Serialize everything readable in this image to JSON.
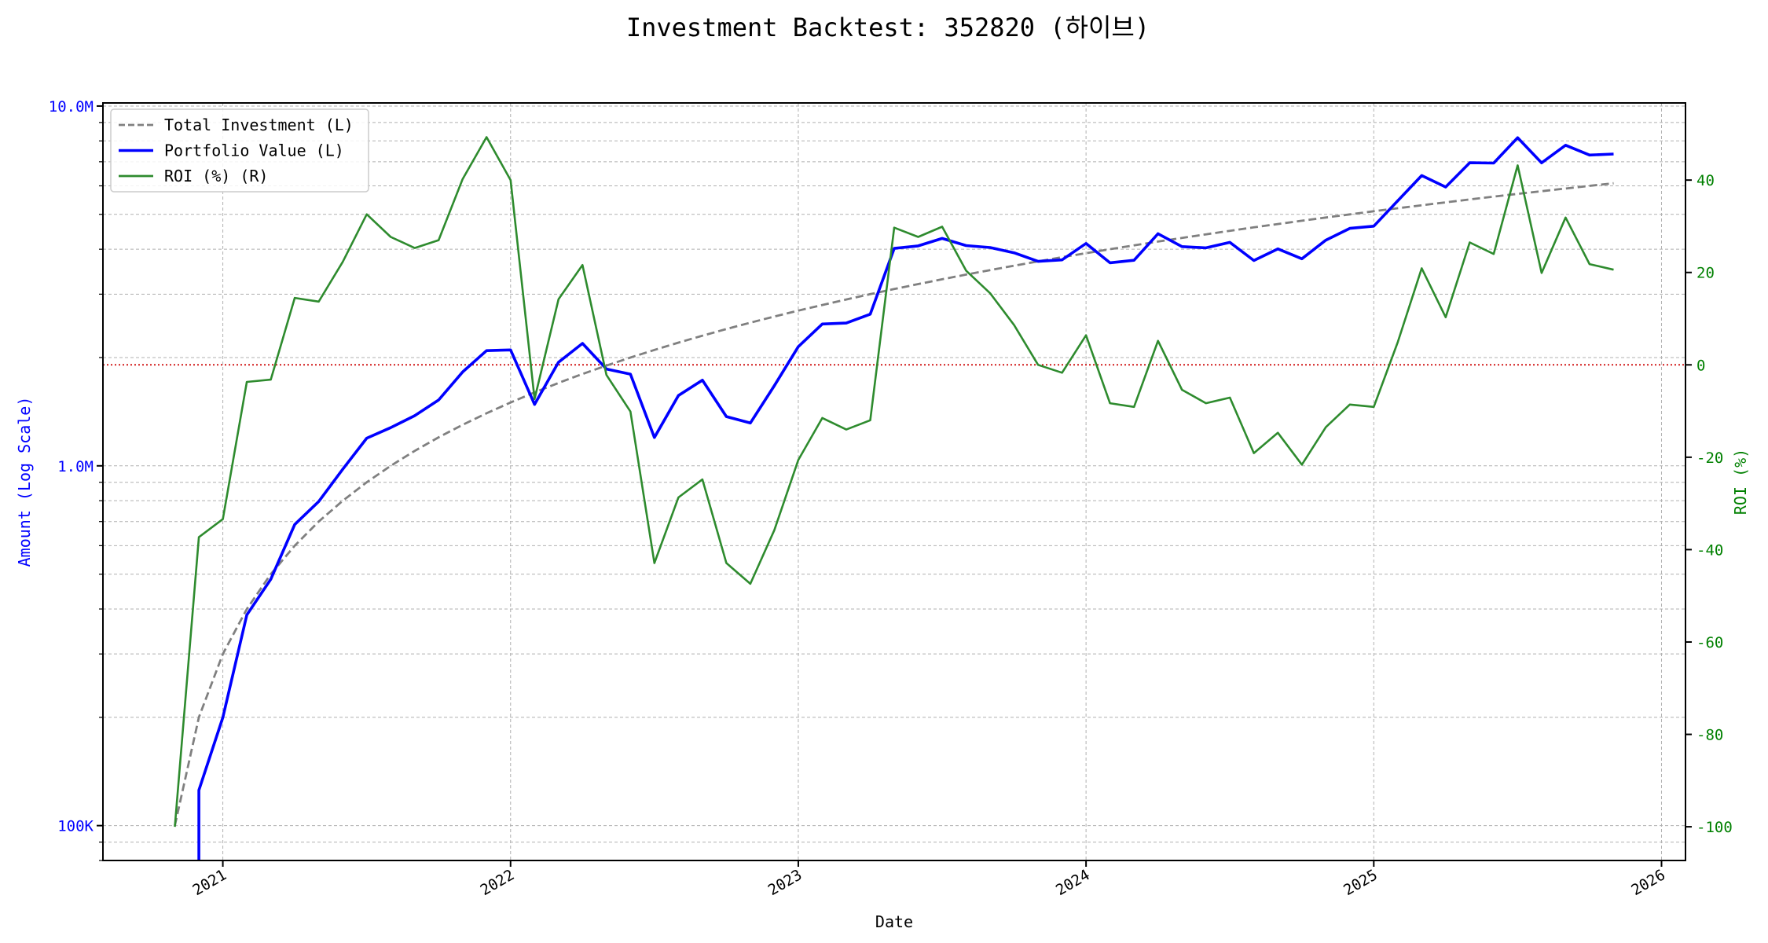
{
  "chart_data": {
    "type": "line",
    "title": "Investment Backtest: 352820 (하이브)",
    "xlabel": "Date",
    "ylabel_left": "Amount (Log Scale)",
    "ylabel_right": "ROI (%)",
    "left_scale": "log",
    "left_ylim": [
      80000,
      10200000
    ],
    "left_ticks": [
      {
        "value": 100000,
        "label": "100K"
      },
      {
        "value": 1000000,
        "label": "1.0M"
      },
      {
        "value": 10000000,
        "label": "10.0M"
      }
    ],
    "right_ylim": [
      -107.3,
      56.7
    ],
    "right_ticks": [
      -100,
      -80,
      -60,
      -40,
      -20,
      0,
      20,
      40
    ],
    "xlim": [
      "2020-08",
      "2026-02"
    ],
    "x_ticks": [
      "2021",
      "2022",
      "2023",
      "2024",
      "2025",
      "2026"
    ],
    "grid": true,
    "legend_position": "top-left",
    "reference_line": {
      "axis": "right",
      "value": 0,
      "color": "#cc0000",
      "style": "dotted"
    },
    "x": [
      "2020-11",
      "2020-12",
      "2021-01",
      "2021-02",
      "2021-03",
      "2021-04",
      "2021-05",
      "2021-06",
      "2021-07",
      "2021-08",
      "2021-09",
      "2021-10",
      "2021-11",
      "2021-12",
      "2022-01",
      "2022-02",
      "2022-03",
      "2022-04",
      "2022-05",
      "2022-06",
      "2022-07",
      "2022-08",
      "2022-09",
      "2022-10",
      "2022-11",
      "2022-12",
      "2023-01",
      "2023-02",
      "2023-03",
      "2023-04",
      "2023-05",
      "2023-06",
      "2023-07",
      "2023-08",
      "2023-09",
      "2023-10",
      "2023-11",
      "2023-12",
      "2024-01",
      "2024-02",
      "2024-03",
      "2024-04",
      "2024-05",
      "2024-06",
      "2024-07",
      "2024-08",
      "2024-09",
      "2024-10",
      "2024-11",
      "2024-12",
      "2025-01",
      "2025-02",
      "2025-03",
      "2025-04",
      "2025-05",
      "2025-06",
      "2025-07",
      "2025-08",
      "2025-09",
      "2025-10",
      "2025-11"
    ],
    "series": [
      {
        "name": "Total Investment (L)",
        "axis": "left",
        "color": "#808080",
        "style": "dashed",
        "values": [
          100000,
          200000,
          300000,
          400000,
          500000,
          600000,
          700000,
          800000,
          900000,
          1000000,
          1100000,
          1200000,
          1300000,
          1400000,
          1500000,
          1600000,
          1700000,
          1800000,
          1900000,
          2000000,
          2100000,
          2200000,
          2300000,
          2400000,
          2500000,
          2600000,
          2700000,
          2800000,
          2900000,
          3000000,
          3100000,
          3200000,
          3300000,
          3400000,
          3500000,
          3600000,
          3700000,
          3800000,
          3900000,
          4000000,
          4100000,
          4200000,
          4300000,
          4400000,
          4500000,
          4600000,
          4700000,
          4800000,
          4900000,
          5000000,
          5100000,
          5200000,
          5300000,
          5400000,
          5500000,
          5600000,
          5700000,
          5800000,
          5900000,
          6000000,
          6100000
        ]
      },
      {
        "name": "Portfolio Value (L)",
        "axis": "left",
        "color": "#0000ff",
        "style": "solid",
        "values": [
          0,
          125400,
          199800,
          385200,
          484000,
          687000,
          795900,
          978400,
          1193400,
          1277000,
          1378300,
          1524000,
          1822600,
          2090200,
          2100000,
          1481600,
          1941400,
          2188800,
          1858200,
          1798000,
          1199100,
          1568600,
          1729600,
          1370400,
          1315000,
          1669200,
          2143800,
          2478000,
          2494000,
          2640000,
          4020700,
          4086400,
          4286700,
          4093600,
          4042500,
          3909600,
          3700000,
          3735400,
          4149600,
          3668000,
          3726900,
          4418400,
          4067800,
          4034800,
          4180500,
          3721400,
          4009100,
          3763200,
          4238500,
          4570000,
          4635900,
          5454800,
          6407700,
          5956200,
          6957500,
          6944000,
          8162400,
          6954200,
          7782100,
          7308000,
          7356600
        ]
      },
      {
        "name": "ROI (%) (R)",
        "axis": "right",
        "color": "#2e8b2e",
        "style": "solid",
        "values": [
          -100,
          -37.3,
          -33.4,
          -3.7,
          -3.2,
          14.5,
          13.7,
          22.3,
          32.6,
          27.7,
          25.3,
          27.0,
          40.2,
          49.3,
          40.0,
          -7.4,
          14.2,
          21.6,
          -2.2,
          -10.1,
          -42.9,
          -28.7,
          -24.8,
          -42.9,
          -47.4,
          -35.8,
          -20.6,
          -11.5,
          -14.0,
          -12.0,
          29.7,
          27.7,
          29.9,
          20.4,
          15.5,
          8.6,
          0,
          -1.7,
          6.4,
          -8.3,
          -9.1,
          5.2,
          -5.4,
          -8.3,
          -7.1,
          -19.1,
          -14.7,
          -21.6,
          -13.5,
          -8.6,
          -9.1,
          4.9,
          20.9,
          10.3,
          26.5,
          24.0,
          43.2,
          19.9,
          31.9,
          21.8,
          20.6
        ]
      }
    ]
  }
}
